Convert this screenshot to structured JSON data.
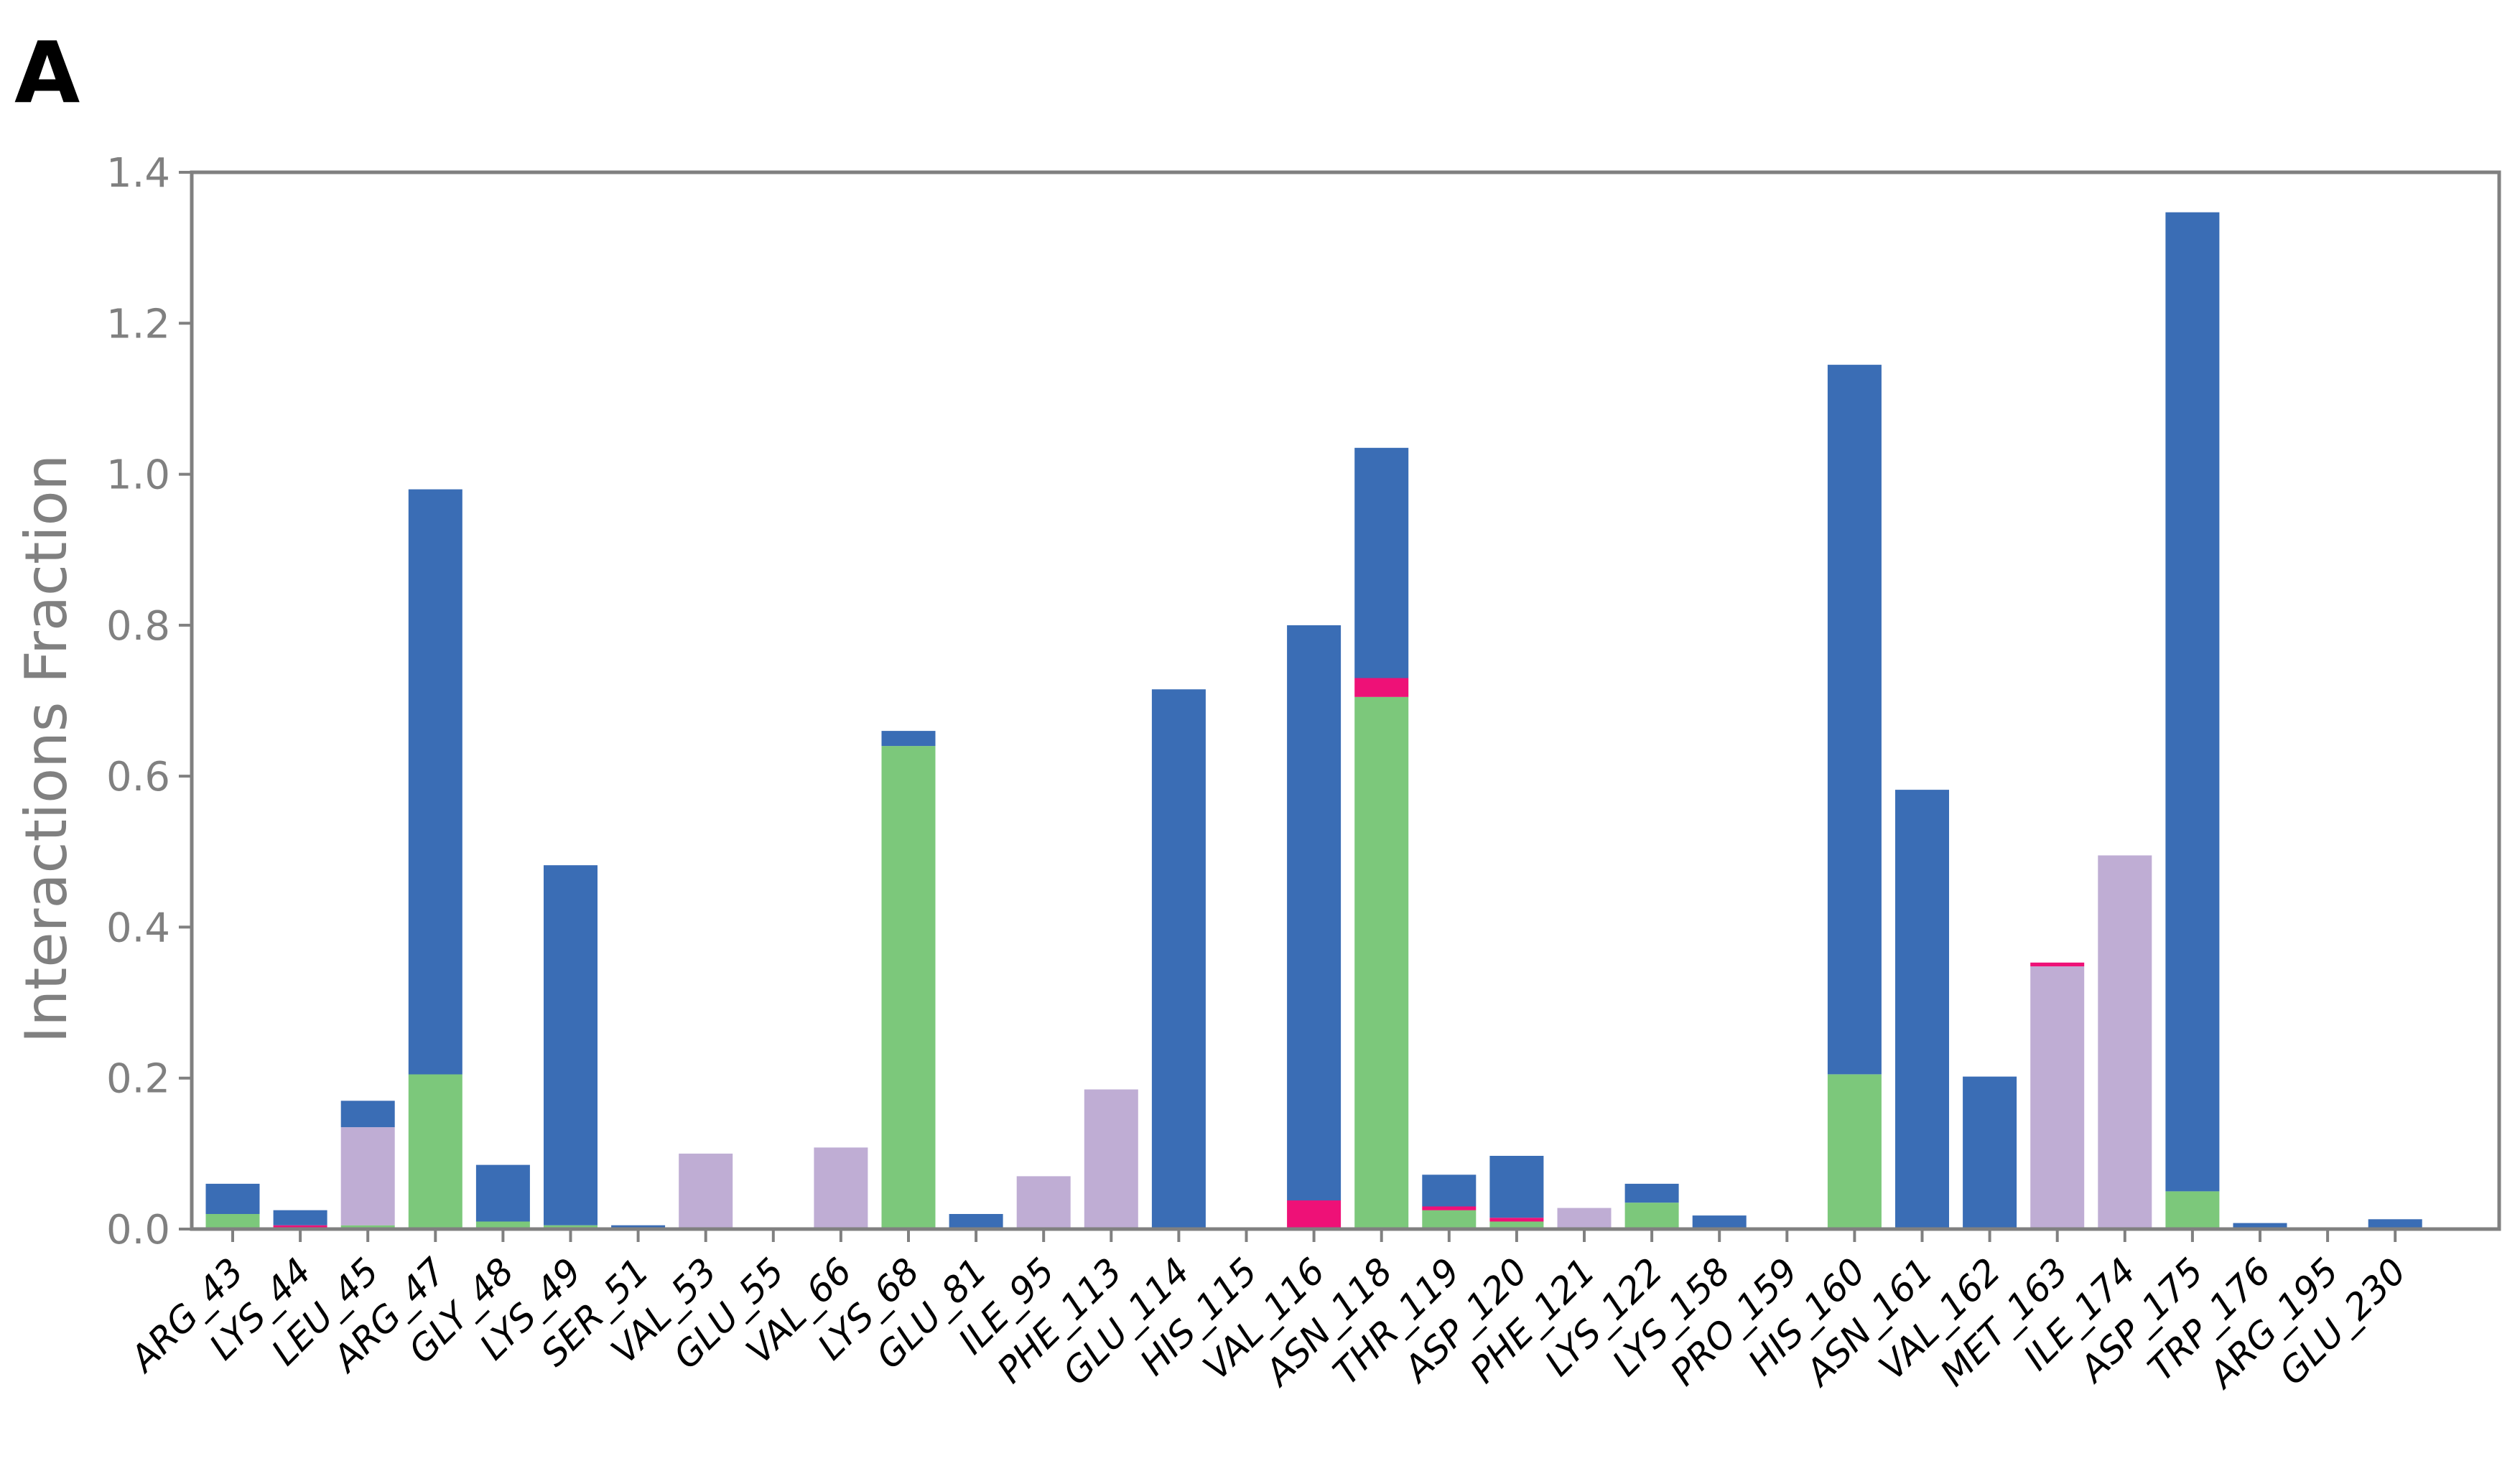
{
  "panel_label": "A",
  "colors": {
    "h_bonds": "#7cc87b",
    "hydrophobic": "#bfadd4",
    "ionic": "#ee1177",
    "water_bridges": "#3a6db5",
    "axis": "#808080",
    "tick_text": "#808080",
    "category_text": "#000000"
  },
  "chart_data": {
    "type": "bar",
    "stacked": true,
    "title": "",
    "xlabel": "",
    "ylabel": "Interactions Fraction",
    "ylim": [
      0,
      1.4
    ],
    "yticks": [
      "0.0",
      "0.2",
      "0.4",
      "0.6",
      "0.8",
      "1.0",
      "1.2",
      "1.4"
    ],
    "grid": false,
    "categories": [
      "ARG_43",
      "LYS_44",
      "LEU_45",
      "ARG_47",
      "GLY_48",
      "LYS_49",
      "SER_51",
      "VAL_53",
      "GLU_55",
      "VAL_66",
      "LYS_68",
      "GLU_81",
      "ILE_95",
      "PHE_113",
      "GLU_114",
      "HIS_115",
      "VAL_116",
      "ASN_118",
      "THR_119",
      "ASP_120",
      "PHE_121",
      "LYS_122",
      "LYS_158",
      "PRO_159",
      "HIS_160",
      "ASN_161",
      "VAL_162",
      "MET_163",
      "ILE_174",
      "ASP_175",
      "TRP_176",
      "ARG_195",
      "GLU_230"
    ],
    "series": [
      {
        "values": [
          0.02,
          0.0,
          0.005,
          0.205,
          0.01,
          0.005,
          0.0,
          0.0,
          0.0,
          0.0,
          0.64,
          0.0,
          0.0,
          0.0,
          0.0,
          0.0,
          0.0,
          0.705,
          0.025,
          0.01,
          0.0,
          0.035,
          0.0,
          0.0,
          0.205,
          0.0,
          0.0,
          0.0,
          0.0,
          0.05,
          0.0,
          0.0,
          0.0
        ]
      },
      {
        "values": [
          0.0,
          0.0,
          0.13,
          0.0,
          0.0,
          0.0,
          0.0,
          0.1,
          0.0,
          0.108,
          0.0,
          0.0,
          0.07,
          0.185,
          0.0,
          0.0,
          0.0,
          0.0,
          0.0,
          0.0,
          0.028,
          0.0,
          0.0,
          0.0,
          0.0,
          0.0,
          0.0,
          0.348,
          0.495,
          0.0,
          0.0,
          0.0,
          0.0
        ]
      },
      {
        "values": [
          0.0,
          0.005,
          0.0,
          0.0,
          0.0,
          0.0,
          0.0,
          0.0,
          0.0,
          0.0,
          0.0,
          0.0,
          0.0,
          0.0,
          0.0,
          0.0,
          0.038,
          0.025,
          0.005,
          0.005,
          0.0,
          0.0,
          0.0,
          0.0,
          0.0,
          0.0,
          0.0,
          0.005,
          0.0,
          0.0,
          0.0,
          0.0,
          0.0
        ]
      },
      {
        "values": [
          0.04,
          0.02,
          0.035,
          0.775,
          0.075,
          0.477,
          0.005,
          0.0,
          0.0,
          0.0,
          0.02,
          0.02,
          0.0,
          0.0,
          0.715,
          0.0,
          0.762,
          0.305,
          0.042,
          0.082,
          0.0,
          0.025,
          0.018,
          0.0,
          0.94,
          0.582,
          0.202,
          0.0,
          0.0,
          1.297,
          0.008,
          0.0,
          0.013
        ]
      }
    ]
  }
}
